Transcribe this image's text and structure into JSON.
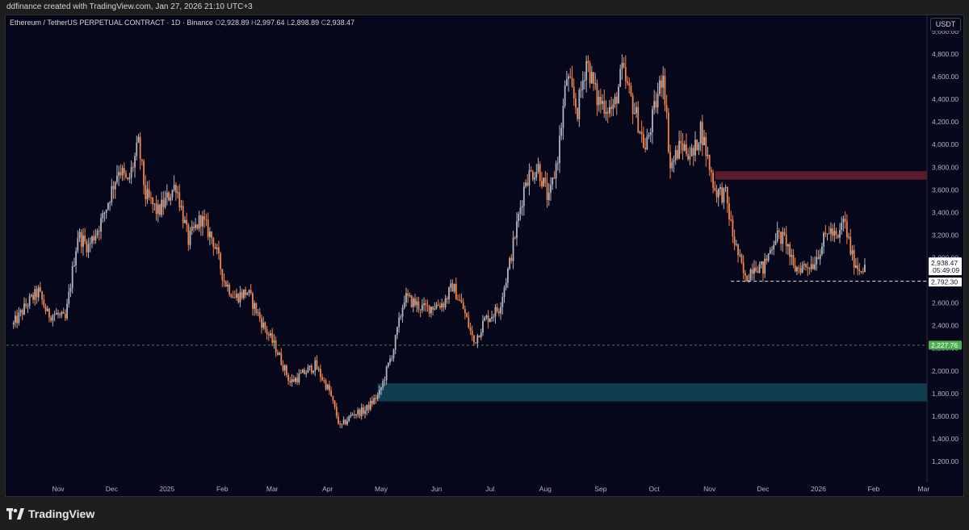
{
  "header": {
    "attribution": "ddfinance created with TradingView.com, Jan 27, 2026 21:10 UTC+3"
  },
  "legend": {
    "symbol": "Ethereum / TetherUS PERPETUAL CONTRACT · 1D · Binance",
    "open_label": "O",
    "open": "2,928.89",
    "high_label": "H",
    "high": "2,997.64",
    "low_label": "L",
    "low": "2,898.89",
    "close_label": "C",
    "close": "2,938.47"
  },
  "currency": "USDT",
  "footer": {
    "brand": "TradingView"
  },
  "colors": {
    "background": "#06071a",
    "up": "#b2b5be",
    "down": "#f2854a",
    "resistance_zone": "#5b1b2b",
    "support_zone": "#0f3d4d",
    "support_line": "#4caf50",
    "price_line": "#ffffff",
    "last_price_label": "#ffffff"
  },
  "chart_data": {
    "type": "candlestick",
    "x_axis": {
      "labels": [
        "Nov",
        "Dec",
        "2025",
        "Feb",
        "Mar",
        "Apr",
        "May",
        "Jun",
        "Jul",
        "Aug",
        "Sep",
        "Oct",
        "Nov",
        "Dec",
        "2026",
        "Feb",
        "Mar"
      ],
      "dates": [
        "2024-11-01",
        "2024-12-01",
        "2025-01-01",
        "2025-02-01",
        "2025-03-01",
        "2025-04-01",
        "2025-05-01",
        "2025-06-01",
        "2025-07-01",
        "2025-08-01",
        "2025-09-01",
        "2025-10-01",
        "2025-11-01",
        "2025-12-01",
        "2026-01-01",
        "2026-02-01",
        "2026-03-01"
      ]
    },
    "y_axis": {
      "ticks": [
        "1,200.00",
        "1,400.00",
        "1,600.00",
        "1,800.00",
        "2,000.00",
        "2,200.00",
        "2,400.00",
        "2,600.00",
        "2,800.00",
        "3,000.00",
        "3,200.00",
        "3,400.00",
        "3,600.00",
        "3,800.00",
        "4,000.00",
        "4,200.00",
        "4,400.00",
        "4,600.00",
        "4,800.00",
        "5,000.00"
      ],
      "tick_values": [
        1200,
        1400,
        1600,
        1800,
        2000,
        2200,
        2400,
        2600,
        2800,
        3000,
        3200,
        3400,
        3600,
        3800,
        4000,
        4200,
        4400,
        4600,
        4800,
        5000
      ],
      "range": [
        1050,
        5060
      ]
    },
    "series": [
      {
        "trend_points": [
          [
            "2024-10-07",
            2410
          ],
          [
            "2024-10-15",
            2600
          ],
          [
            "2024-10-21",
            2700
          ],
          [
            "2024-10-26",
            2500
          ],
          [
            "2024-10-31",
            2500
          ],
          [
            "2024-11-05",
            2450
          ],
          [
            "2024-11-12",
            3200
          ],
          [
            "2024-11-18",
            3100
          ],
          [
            "2024-11-26",
            3350
          ],
          [
            "2024-12-05",
            3800
          ],
          [
            "2024-12-10",
            3650
          ],
          [
            "2024-12-16",
            4000
          ],
          [
            "2024-12-20",
            3550
          ],
          [
            "2024-12-27",
            3400
          ],
          [
            "2025-01-06",
            3650
          ],
          [
            "2025-01-13",
            3150
          ],
          [
            "2025-01-20",
            3350
          ],
          [
            "2025-01-27",
            3150
          ],
          [
            "2025-02-02",
            2800
          ],
          [
            "2025-02-08",
            2650
          ],
          [
            "2025-02-15",
            2700
          ],
          [
            "2025-02-24",
            2400
          ],
          [
            "2025-03-03",
            2200
          ],
          [
            "2025-03-11",
            1900
          ],
          [
            "2025-03-16",
            1950
          ],
          [
            "2025-03-25",
            2050
          ],
          [
            "2025-04-02",
            1820
          ],
          [
            "2025-04-08",
            1500
          ],
          [
            "2025-04-15",
            1620
          ],
          [
            "2025-04-22",
            1650
          ],
          [
            "2025-04-30",
            1800
          ],
          [
            "2025-05-08",
            2200
          ],
          [
            "2025-05-14",
            2650
          ],
          [
            "2025-05-25",
            2550
          ],
          [
            "2025-06-05",
            2600
          ],
          [
            "2025-06-10",
            2750
          ],
          [
            "2025-06-16",
            2550
          ],
          [
            "2025-06-22",
            2250
          ],
          [
            "2025-06-28",
            2450
          ],
          [
            "2025-07-06",
            2550
          ],
          [
            "2025-07-12",
            2950
          ],
          [
            "2025-07-21",
            3700
          ],
          [
            "2025-07-28",
            3800
          ],
          [
            "2025-08-03",
            3500
          ],
          [
            "2025-08-08",
            3900
          ],
          [
            "2025-08-13",
            4600
          ],
          [
            "2025-08-19",
            4300
          ],
          [
            "2025-08-24",
            4750
          ],
          [
            "2025-08-30",
            4400
          ],
          [
            "2025-09-08",
            4300
          ],
          [
            "2025-09-13",
            4650
          ],
          [
            "2025-09-22",
            4200
          ],
          [
            "2025-09-26",
            3950
          ],
          [
            "2025-10-06",
            4650
          ],
          [
            "2025-10-10",
            3800
          ],
          [
            "2025-10-16",
            4000
          ],
          [
            "2025-10-23",
            3900
          ],
          [
            "2025-10-27",
            4150
          ],
          [
            "2025-11-04",
            3600
          ],
          [
            "2025-11-10",
            3550
          ],
          [
            "2025-11-14",
            3200
          ],
          [
            "2025-11-21",
            2800
          ],
          [
            "2025-11-26",
            2950
          ],
          [
            "2025-12-01",
            2900
          ],
          [
            "2025-12-08",
            3200
          ],
          [
            "2025-12-14",
            3150
          ],
          [
            "2025-12-18",
            2900
          ],
          [
            "2025-12-29",
            2950
          ],
          [
            "2026-01-07",
            3250
          ],
          [
            "2026-01-12",
            3150
          ],
          [
            "2026-01-15",
            3350
          ],
          [
            "2026-01-20",
            3000
          ],
          [
            "2026-01-24",
            2900
          ],
          [
            "2026-01-27",
            2938.47
          ]
        ]
      }
    ],
    "zones": [
      {
        "kind": "resistance",
        "from": "2025-11-04",
        "to": "2026-03-10",
        "low": 3690,
        "high": 3765
      },
      {
        "kind": "support",
        "from": "2025-04-29",
        "to": "2026-03-10",
        "low": 1730,
        "high": 1890
      }
    ],
    "horizontal_lines": [
      {
        "kind": "support",
        "value": 2227.76,
        "label": "2,227.76",
        "from": "2024-10-03"
      },
      {
        "kind": "price",
        "value": 2792.3,
        "label": "2,792.30",
        "from": "2025-11-13"
      }
    ],
    "last_price": {
      "value": 2938.47,
      "label": "2,938.47",
      "countdown": "05:49:09"
    }
  }
}
